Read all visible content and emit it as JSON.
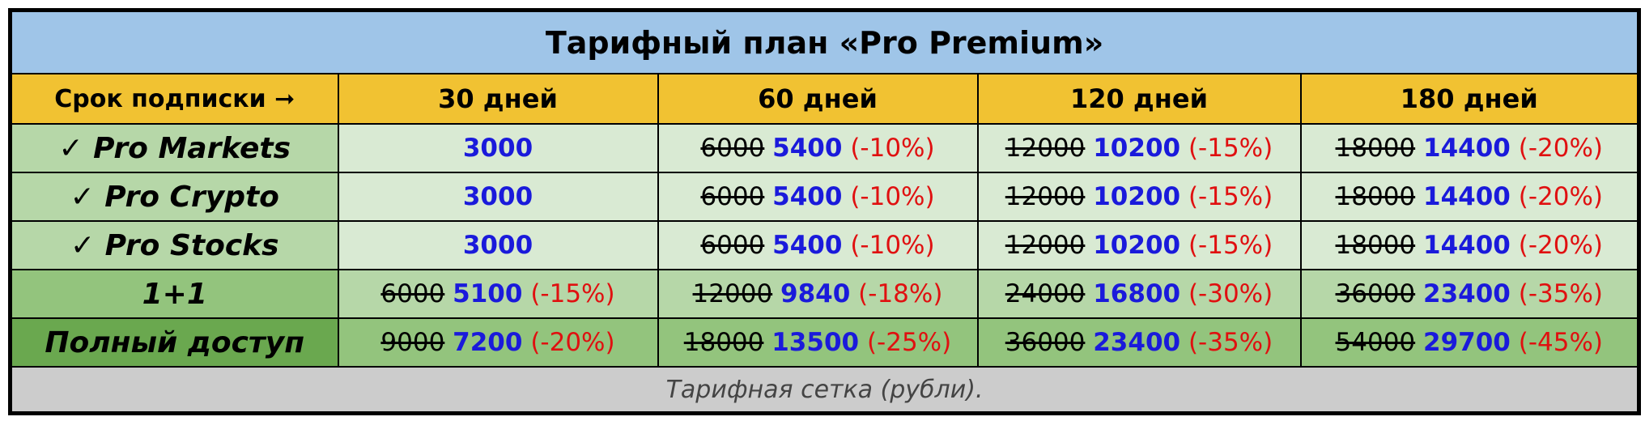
{
  "title": "Тарифный план «Pro Premium»",
  "table": {
    "header": [
      "Срок подписки ➞",
      "30 дней",
      "60 дней",
      "120 дней",
      "180 дней"
    ],
    "rows": [
      {
        "label": "✓ Pro Markets",
        "cells": [
          {
            "new": 3000
          },
          {
            "old": 6000,
            "new": 5400,
            "discount": "(-10%)"
          },
          {
            "old": 12000,
            "new": 10200,
            "discount": "(-15%)"
          },
          {
            "old": 18000,
            "new": 14400,
            "discount": "(-20%)"
          }
        ]
      },
      {
        "label": "✓ Pro Crypto",
        "cells": [
          {
            "new": 3000
          },
          {
            "old": 6000,
            "new": 5400,
            "discount": "(-10%)"
          },
          {
            "old": 12000,
            "new": 10200,
            "discount": "(-15%)"
          },
          {
            "old": 18000,
            "new": 14400,
            "discount": "(-20%)"
          }
        ]
      },
      {
        "label": "✓ Pro Stocks",
        "cells": [
          {
            "new": 3000
          },
          {
            "old": 6000,
            "new": 5400,
            "discount": "(-10%)"
          },
          {
            "old": 12000,
            "new": 10200,
            "discount": "(-15%)"
          },
          {
            "old": 18000,
            "new": 14400,
            "discount": "(-20%)"
          }
        ]
      },
      {
        "label": "1+1",
        "cells": [
          {
            "old": 6000,
            "new": 5100,
            "discount": "(-15%)"
          },
          {
            "old": 12000,
            "new": 9840,
            "discount": "(-18%)"
          },
          {
            "old": 24000,
            "new": 16800,
            "discount": "(-30%)"
          },
          {
            "old": 36000,
            "new": 23400,
            "discount": "(-35%)"
          }
        ]
      },
      {
        "label": "Полный доступ",
        "cells": [
          {
            "old": 9000,
            "new": 7200,
            "discount": "(-20%)"
          },
          {
            "old": 18000,
            "new": 13500,
            "discount": "(-25%)"
          },
          {
            "old": 36000,
            "new": 23400,
            "discount": "(-35%)"
          },
          {
            "old": 54000,
            "new": 29700,
            "discount": "(-45%)"
          }
        ]
      }
    ]
  },
  "caption": "Тарифная сетка (рубли)."
}
